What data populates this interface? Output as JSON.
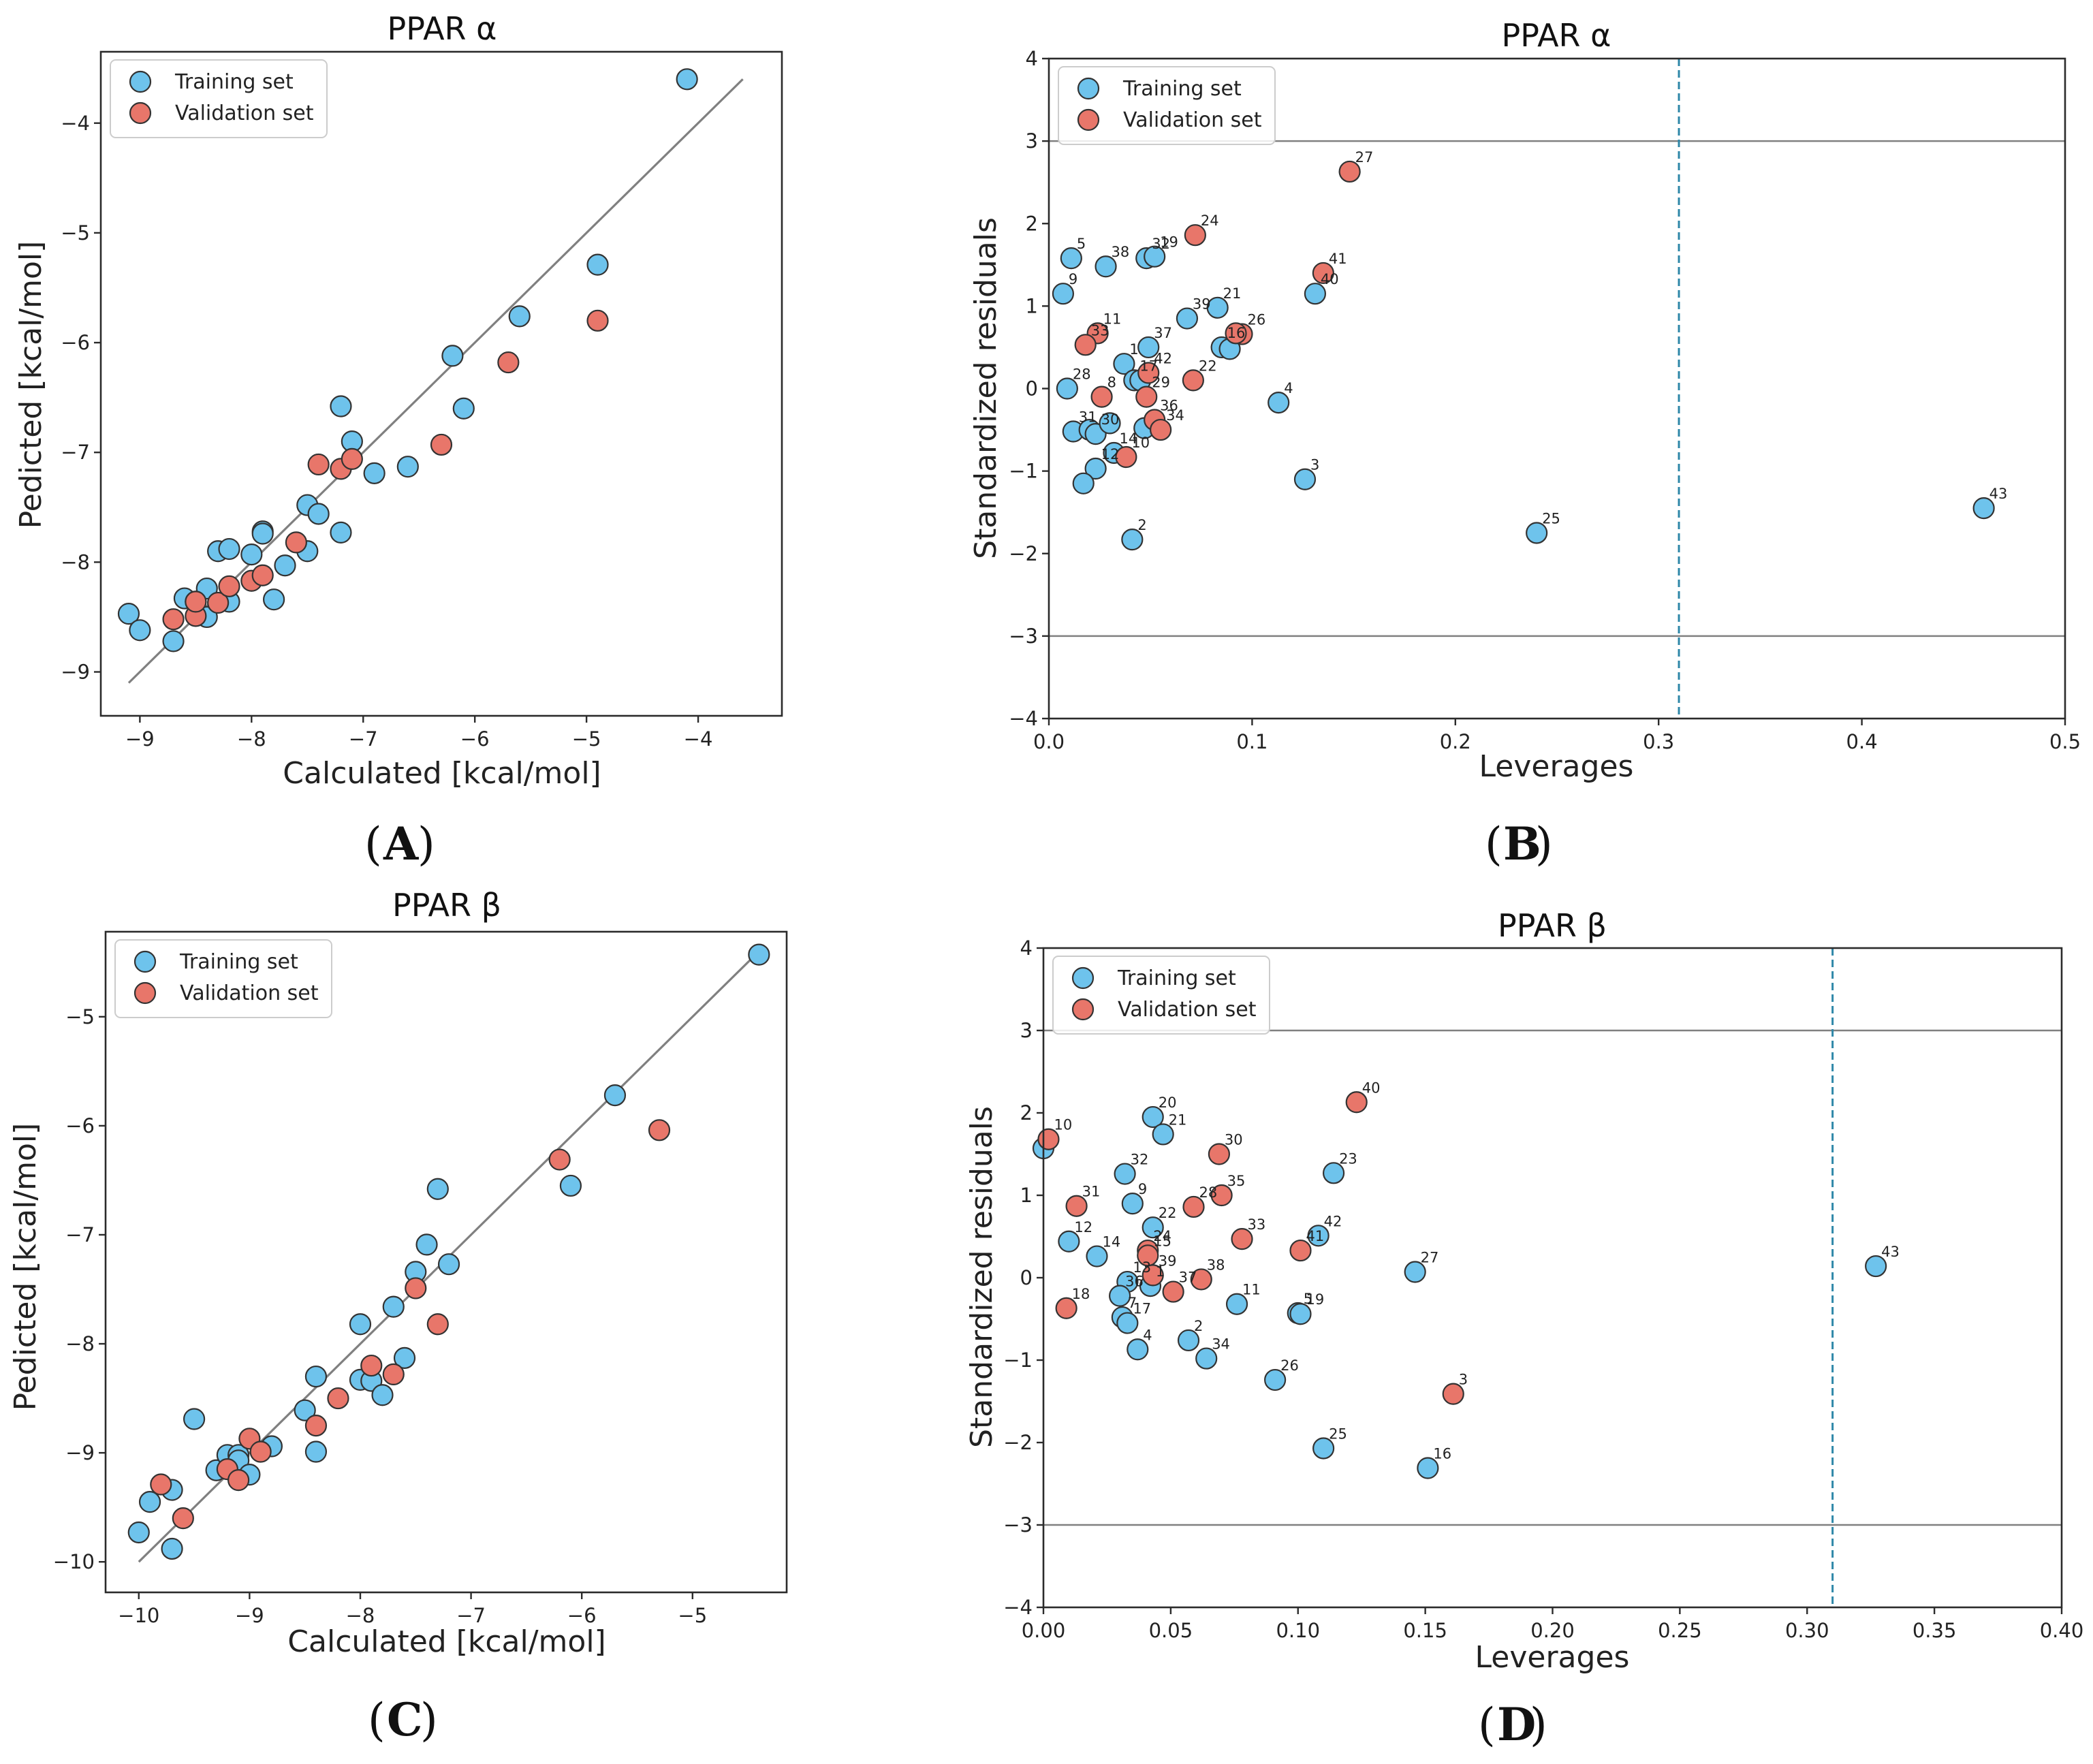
{
  "colors": {
    "train": "#6ec3ec",
    "valid": "#e8766a",
    "refline": "#808080",
    "lev": "#2e87a8",
    "band": "#808080"
  },
  "chart_data": [
    {
      "id": "A",
      "type": "scatter",
      "panel_label": "A",
      "title": "PPAR α",
      "xlabel": "Calculated [kcal/mol]",
      "ylabel": "Pedicted [kcal/mol]",
      "xlim": [
        -9.35,
        -3.25
      ],
      "ylim": [
        -9.4,
        -3.35
      ],
      "xticks": [
        -9,
        -8,
        -7,
        -6,
        -5,
        -4
      ],
      "yticks": [
        -9,
        -8,
        -7,
        -6,
        -5,
        -4
      ],
      "xtick_labels": [
        "−9",
        "−8",
        "−7",
        "−6",
        "−5",
        "−4"
      ],
      "ytick_labels": [
        "−9",
        "−8",
        "−7",
        "−6",
        "−5",
        "−4"
      ],
      "legend": [
        "Training set",
        "Validation set"
      ],
      "legend_position": "upper-left",
      "identity_line": [
        -9.1,
        -3.6
      ],
      "training": [
        [
          -9.1,
          -8.47
        ],
        [
          -9.0,
          -8.62
        ],
        [
          -8.7,
          -8.72
        ],
        [
          -8.6,
          -8.33
        ],
        [
          -8.5,
          -8.36
        ],
        [
          -8.4,
          -8.24
        ],
        [
          -8.4,
          -8.5
        ],
        [
          -8.3,
          -7.9
        ],
        [
          -8.2,
          -7.88
        ],
        [
          -8.2,
          -8.36
        ],
        [
          -8.0,
          -7.93
        ],
        [
          -7.9,
          -7.72
        ],
        [
          -7.9,
          -7.74
        ],
        [
          -7.8,
          -8.34
        ],
        [
          -7.7,
          -8.03
        ],
        [
          -7.5,
          -7.48
        ],
        [
          -7.5,
          -7.9
        ],
        [
          -7.4,
          -7.56
        ],
        [
          -7.2,
          -7.73
        ],
        [
          -7.2,
          -6.58
        ],
        [
          -7.1,
          -6.9
        ],
        [
          -6.9,
          -7.19
        ],
        [
          -6.6,
          -7.13
        ],
        [
          -6.2,
          -6.12
        ],
        [
          -6.1,
          -6.6
        ],
        [
          -5.6,
          -5.76
        ],
        [
          -4.9,
          -5.29
        ],
        [
          -4.1,
          -3.6
        ]
      ],
      "validation": [
        [
          -8.7,
          -8.52
        ],
        [
          -8.5,
          -8.49
        ],
        [
          -8.5,
          -8.36
        ],
        [
          -8.3,
          -8.37
        ],
        [
          -8.2,
          -8.22
        ],
        [
          -8.0,
          -8.17
        ],
        [
          -7.9,
          -8.12
        ],
        [
          -7.6,
          -7.82
        ],
        [
          -7.4,
          -7.11
        ],
        [
          -7.2,
          -7.15
        ],
        [
          -7.1,
          -7.06
        ],
        [
          -6.3,
          -6.93
        ],
        [
          -5.7,
          -6.18
        ],
        [
          -4.9,
          -5.8
        ]
      ]
    },
    {
      "id": "B",
      "type": "scatter",
      "panel_label": "B",
      "title": "PPAR α",
      "xlabel": "Leverages",
      "ylabel": "Standardized residuals",
      "xlim": [
        0,
        0.5
      ],
      "ylim": [
        -4,
        4
      ],
      "xticks": [
        0,
        0.1,
        0.2,
        0.3,
        0.4,
        0.5
      ],
      "yticks": [
        -4,
        -3,
        -2,
        -1,
        0,
        1,
        2,
        3,
        4
      ],
      "xtick_labels": [
        "0.0",
        "0.1",
        "0.2",
        "0.3",
        "0.4",
        "0.5"
      ],
      "ytick_labels": [
        "−4",
        "−3",
        "−2",
        "−1",
        "0",
        "1",
        "2",
        "3",
        "4"
      ],
      "legend": [
        "Training set",
        "Validation set"
      ],
      "legend_position": "upper-left",
      "hlines": [
        3,
        -3
      ],
      "vline": 0.31,
      "training": [
        [
          0.007,
          1.15,
          "9"
        ],
        [
          0.011,
          1.58,
          "5"
        ],
        [
          0.028,
          1.48,
          "38"
        ],
        [
          0.048,
          1.58,
          "32"
        ],
        [
          0.052,
          1.6,
          "19"
        ],
        [
          0.068,
          0.85,
          "39"
        ],
        [
          0.083,
          0.98,
          "21"
        ],
        [
          0.085,
          0.5,
          "16"
        ],
        [
          0.089,
          0.48,
          ""
        ],
        [
          0.037,
          0.3,
          "1"
        ],
        [
          0.049,
          0.5,
          "37"
        ],
        [
          0.042,
          0.1,
          "17"
        ],
        [
          0.045,
          0.1,
          ""
        ],
        [
          0.009,
          0.0,
          "28"
        ],
        [
          0.012,
          -0.52,
          "31"
        ],
        [
          0.02,
          -0.5,
          ""
        ],
        [
          0.023,
          -0.55,
          "30"
        ],
        [
          0.03,
          -0.42,
          ""
        ],
        [
          0.047,
          -0.48,
          ""
        ],
        [
          0.032,
          -0.78,
          "14"
        ],
        [
          0.023,
          -0.97,
          "12"
        ],
        [
          0.017,
          -1.15,
          ""
        ],
        [
          0.041,
          -1.83,
          "2"
        ],
        [
          0.113,
          -0.17,
          "4"
        ],
        [
          0.126,
          -1.1,
          "3"
        ],
        [
          0.131,
          1.15,
          "40"
        ],
        [
          0.24,
          -1.75,
          "25"
        ],
        [
          0.46,
          -1.45,
          "43"
        ]
      ],
      "validation": [
        [
          0.072,
          1.86,
          "24"
        ],
        [
          0.148,
          2.63,
          "27"
        ],
        [
          0.135,
          1.4,
          "41"
        ],
        [
          0.024,
          0.67,
          "11"
        ],
        [
          0.018,
          0.53,
          "33"
        ],
        [
          0.095,
          0.66,
          "26"
        ],
        [
          0.092,
          0.67,
          ""
        ],
        [
          0.071,
          0.1,
          "22"
        ],
        [
          0.049,
          0.19,
          "42"
        ],
        [
          0.048,
          -0.1,
          "29"
        ],
        [
          0.026,
          -0.1,
          "8"
        ],
        [
          0.052,
          -0.38,
          "36"
        ],
        [
          0.055,
          -0.5,
          "34"
        ],
        [
          0.038,
          -0.83,
          "10"
        ]
      ]
    },
    {
      "id": "C",
      "type": "scatter",
      "panel_label": "C",
      "title": "PPAR β",
      "xlabel": "Calculated [kcal/mol]",
      "ylabel": "Pedicted [kcal/mol]",
      "xlim": [
        -10.3,
        -4.15
      ],
      "ylim": [
        -10.28,
        -4.22
      ],
      "xticks": [
        -10,
        -9,
        -8,
        -7,
        -6,
        -5
      ],
      "yticks": [
        -10,
        -9,
        -8,
        -7,
        -6,
        -5
      ],
      "xtick_labels": [
        "−10",
        "−9",
        "−8",
        "−7",
        "−6",
        "−5"
      ],
      "ytick_labels": [
        "−10",
        "−9",
        "−8",
        "−7",
        "−6",
        "−5"
      ],
      "legend": [
        "Training set",
        "Validation set"
      ],
      "legend_position": "upper-left",
      "identity_line": [
        -10.0,
        -4.4
      ],
      "training": [
        [
          -10.0,
          -9.73
        ],
        [
          -9.9,
          -9.45
        ],
        [
          -9.7,
          -9.88
        ],
        [
          -9.7,
          -9.34
        ],
        [
          -9.5,
          -8.69
        ],
        [
          -9.3,
          -9.16
        ],
        [
          -9.2,
          -9.02
        ],
        [
          -9.1,
          -9.02
        ],
        [
          -9.1,
          -9.07
        ],
        [
          -9.0,
          -9.2
        ],
        [
          -8.8,
          -8.94
        ],
        [
          -8.5,
          -8.61
        ],
        [
          -8.4,
          -8.99
        ],
        [
          -8.4,
          -8.3
        ],
        [
          -8.0,
          -7.82
        ],
        [
          -8.0,
          -8.33
        ],
        [
          -7.9,
          -8.34
        ],
        [
          -7.8,
          -8.47
        ],
        [
          -7.7,
          -7.66
        ],
        [
          -7.6,
          -8.13
        ],
        [
          -7.5,
          -7.34
        ],
        [
          -7.4,
          -7.09
        ],
        [
          -7.3,
          -6.58
        ],
        [
          -7.2,
          -7.27
        ],
        [
          -6.1,
          -6.55
        ],
        [
          -5.7,
          -5.72
        ],
        [
          -4.4,
          -4.43
        ]
      ],
      "validation": [
        [
          -9.8,
          -9.29
        ],
        [
          -9.6,
          -9.6
        ],
        [
          -9.2,
          -9.15
        ],
        [
          -9.1,
          -9.25
        ],
        [
          -9.0,
          -8.87
        ],
        [
          -8.9,
          -8.99
        ],
        [
          -8.4,
          -8.75
        ],
        [
          -8.2,
          -8.5
        ],
        [
          -7.9,
          -8.2
        ],
        [
          -7.7,
          -8.28
        ],
        [
          -7.5,
          -7.49
        ],
        [
          -7.3,
          -7.82
        ],
        [
          -6.2,
          -6.31
        ],
        [
          -5.3,
          -6.04
        ]
      ]
    },
    {
      "id": "D",
      "type": "scatter",
      "panel_label": "D",
      "title": "PPAR β",
      "xlabel": "Leverages",
      "ylabel": "Standardized residuals",
      "xlim": [
        0,
        0.4
      ],
      "ylim": [
        -4,
        4
      ],
      "xticks": [
        0,
        0.05,
        0.1,
        0.15,
        0.2,
        0.25,
        0.3,
        0.35,
        0.4
      ],
      "yticks": [
        -4,
        -3,
        -2,
        -1,
        0,
        1,
        2,
        3,
        4
      ],
      "xtick_labels": [
        "0.00",
        "0.05",
        "0.10",
        "0.15",
        "0.20",
        "0.25",
        "0.30",
        "0.35",
        "0.40"
      ],
      "ytick_labels": [
        "−4",
        "−3",
        "−2",
        "−1",
        "0",
        "1",
        "2",
        "3",
        "4"
      ],
      "legend": [
        "Training set",
        "Validation set"
      ],
      "legend_position": "upper-left",
      "hlines": [
        3,
        -3
      ],
      "vline": 0.31,
      "training": [
        [
          0.0,
          1.57,
          ""
        ],
        [
          0.043,
          1.95,
          "20"
        ],
        [
          0.047,
          1.74,
          "21"
        ],
        [
          0.032,
          1.26,
          "32"
        ],
        [
          0.035,
          0.9,
          "9"
        ],
        [
          0.114,
          1.27,
          "23"
        ],
        [
          0.01,
          0.44,
          "12"
        ],
        [
          0.021,
          0.26,
          "14"
        ],
        [
          0.043,
          0.61,
          "22"
        ],
        [
          0.108,
          0.51,
          "42"
        ],
        [
          0.033,
          -0.05,
          "13"
        ],
        [
          0.042,
          -0.1,
          "1"
        ],
        [
          0.03,
          -0.22,
          "36"
        ],
        [
          0.031,
          -0.48,
          "7"
        ],
        [
          0.033,
          -0.55,
          "17"
        ],
        [
          0.037,
          -0.87,
          "4"
        ],
        [
          0.057,
          -0.76,
          "2"
        ],
        [
          0.064,
          -0.98,
          "34"
        ],
        [
          0.076,
          -0.32,
          "11"
        ],
        [
          0.1,
          -0.43,
          "5"
        ],
        [
          0.101,
          -0.44,
          "19"
        ],
        [
          0.091,
          -1.24,
          "26"
        ],
        [
          0.11,
          -2.07,
          "25"
        ],
        [
          0.146,
          0.07,
          "27"
        ],
        [
          0.151,
          -2.31,
          "16"
        ],
        [
          0.327,
          0.14,
          "43"
        ]
      ],
      "validation": [
        [
          0.002,
          1.68,
          "10"
        ],
        [
          0.123,
          2.13,
          "40"
        ],
        [
          0.069,
          1.5,
          "30"
        ],
        [
          0.013,
          0.87,
          "31"
        ],
        [
          0.059,
          0.86,
          "28"
        ],
        [
          0.07,
          1.0,
          "35"
        ],
        [
          0.078,
          0.47,
          "33"
        ],
        [
          0.101,
          0.33,
          "41"
        ],
        [
          0.041,
          0.33,
          "24"
        ],
        [
          0.041,
          0.27,
          "15"
        ],
        [
          0.043,
          0.03,
          "39"
        ],
        [
          0.051,
          -0.17,
          "37"
        ],
        [
          0.062,
          -0.02,
          "38"
        ],
        [
          0.009,
          -0.37,
          "18"
        ],
        [
          0.161,
          -1.41,
          "3"
        ]
      ]
    }
  ]
}
